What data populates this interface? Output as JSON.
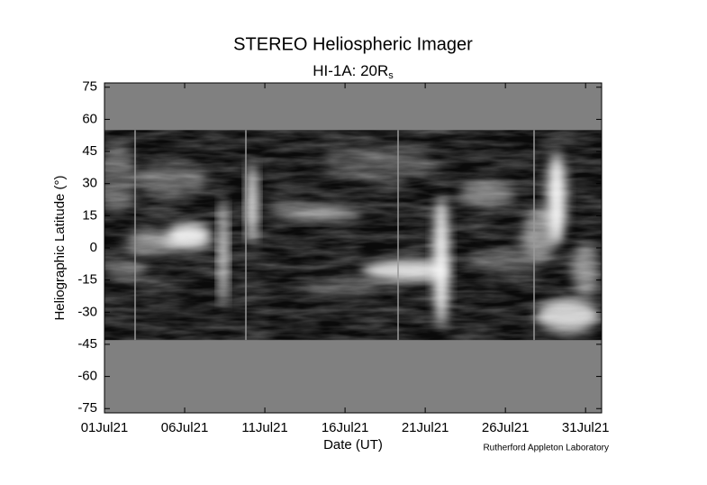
{
  "chart_data": {
    "type": "image",
    "title": "STEREO Heliospheric Imager",
    "subtitle": {
      "text": "HI-1A: 20R",
      "subscript": "s"
    },
    "y_label": "Heliographic Latitude (°)",
    "x_label": "Date (UT)",
    "credit": "Rutherford Appleton Laboratory",
    "xlim": [
      1,
      32
    ],
    "xticks": [
      {
        "value": 1,
        "label": "01Jul21"
      },
      {
        "value": 6,
        "label": "06Jul21"
      },
      {
        "value": 11,
        "label": "11Jul21"
      },
      {
        "value": 16,
        "label": "16Jul21"
      },
      {
        "value": 21,
        "label": "21Jul21"
      },
      {
        "value": 26,
        "label": "26Jul21"
      },
      {
        "value": 31,
        "label": "31Jul21"
      }
    ],
    "ylim": [
      -77,
      77
    ],
    "yticks": [
      75,
      60,
      45,
      30,
      15,
      0,
      -15,
      -30,
      -45,
      -60,
      -75
    ],
    "data_lat_range": [
      -43,
      55
    ]
  }
}
